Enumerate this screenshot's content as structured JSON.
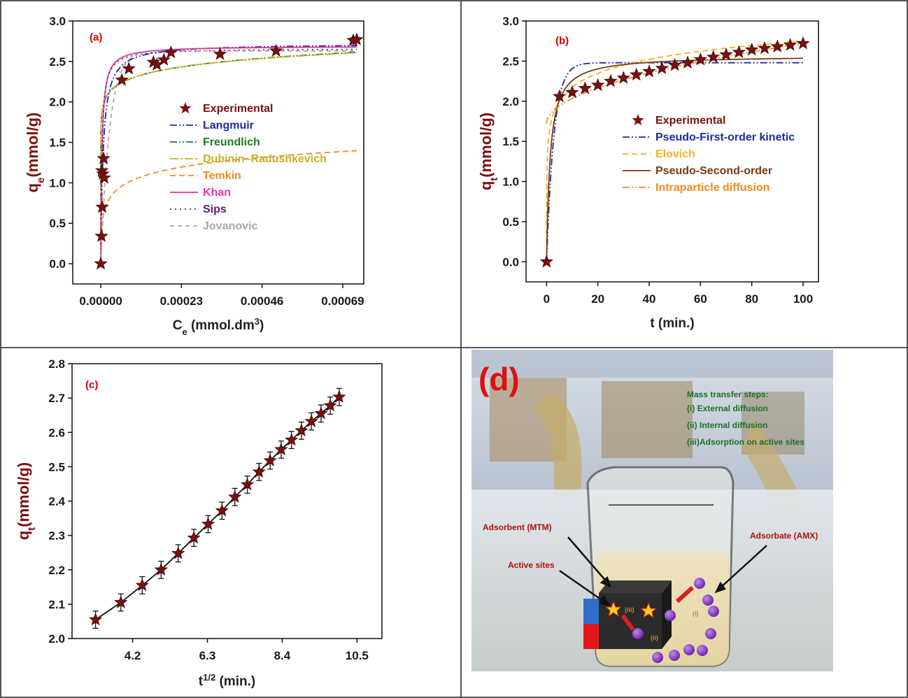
{
  "chart_data": [
    {
      "panel": "(a)",
      "type": "line",
      "xlabel": "C",
      "xlabel_sub": "e",
      "xlabel_unit": " (mmol.dm",
      "xlabel_sup": "3",
      "xlabel_close": ")",
      "ylabel": "q",
      "ylabel_sub": "e",
      "ylabel_unit": "(mmol/g)",
      "xlim": [
        -8e-05,
        0.00075
      ],
      "ylim": [
        -0.25,
        3.0
      ],
      "xticks": [
        "0.00000",
        "0.00023",
        "0.00046",
        "0.00069"
      ],
      "xtick_values": [
        0,
        0.00023,
        0.00046,
        0.00069
      ],
      "yticks": [
        "0.0",
        "0.5",
        "1.0",
        "1.5",
        "2.0",
        "2.5",
        "3.0"
      ],
      "ytick_values": [
        0,
        0.5,
        1.0,
        1.5,
        2.0,
        2.5,
        3.0
      ],
      "experimental": {
        "name": "Experimental",
        "color": "#7b0f0f",
        "x": [
          0.0,
          2e-06,
          4e-06,
          3e-06,
          6e-06,
          8e-06,
          1e-05,
          6e-05,
          8e-05,
          0.00015,
          0.00016,
          0.00018,
          0.0002,
          0.00034,
          0.0005,
          0.00072,
          0.00073
        ],
        "y": [
          0.0,
          0.34,
          0.7,
          1.15,
          1.11,
          1.3,
          1.06,
          2.27,
          2.41,
          2.49,
          2.46,
          2.52,
          2.61,
          2.59,
          2.63,
          2.76,
          2.77
        ]
      },
      "series": [
        {
          "name": "Langmuir",
          "color": "#1f2aa8",
          "dash": "10,3,2,3,2,3",
          "model": "langmuir",
          "p": [
            2.72,
            150000
          ]
        },
        {
          "name": "Freundlich",
          "color": "#1f7a1f",
          "dash": "10,3,2,3,2,3",
          "model": "freundlich",
          "p": [
            4.09,
            0.062
          ]
        },
        {
          "name": "Dubinin–Radushkevich",
          "color": "#c8b02a",
          "dash": "12,3,3,3",
          "model": "freundlich",
          "p": [
            4.02,
            0.06
          ]
        },
        {
          "name": "Temkin",
          "color": "#f08a24",
          "dash": "8,5",
          "model": "temkin",
          "p": [
            0.175,
            4000000
          ]
        },
        {
          "name": "Khan",
          "color": "#e0389a",
          "dash": "",
          "model": "langmuir",
          "p": [
            2.69,
            300000
          ]
        },
        {
          "name": "Sips",
          "color": "#5a1a7a",
          "dash": "2,5",
          "model": "langmuir",
          "p": [
            2.66,
            320000
          ]
        },
        {
          "name": "Jovanovic",
          "color": "#a8a8a8",
          "dash": "6,5",
          "model": "jovanovic",
          "p": [
            2.63,
            40000
          ]
        }
      ]
    },
    {
      "panel": "(b)",
      "type": "line",
      "xlabel": "t (min.)",
      "ylabel": "q",
      "ylabel_sub": "t",
      "ylabel_unit": "(mmol/g)",
      "xlim": [
        -8,
        106
      ],
      "ylim": [
        -0.25,
        3.0
      ],
      "xticks": [
        "0",
        "20",
        "40",
        "60",
        "80",
        "100"
      ],
      "xtick_values": [
        0,
        20,
        40,
        60,
        80,
        100
      ],
      "yticks": [
        "0.0",
        "0.5",
        "1.0",
        "1.5",
        "2.0",
        "2.5",
        "3.0"
      ],
      "ytick_values": [
        0,
        0.5,
        1.0,
        1.5,
        2.0,
        2.5,
        3.0
      ],
      "experimental": {
        "name": "Experimental",
        "color": "#7b0f0f",
        "x": [
          0,
          5,
          10,
          15,
          20,
          25,
          30,
          35,
          40,
          45,
          50,
          55,
          60,
          65,
          70,
          75,
          80,
          85,
          90,
          95,
          100
        ],
        "y": [
          0.0,
          2.06,
          2.11,
          2.16,
          2.2,
          2.25,
          2.29,
          2.33,
          2.37,
          2.41,
          2.45,
          2.48,
          2.52,
          2.55,
          2.58,
          2.61,
          2.64,
          2.66,
          2.68,
          2.7,
          2.72
        ]
      },
      "series": [
        {
          "name": "Pseudo-First-order kinetic",
          "color": "#1f2aa8",
          "dash": "10,3,2,3,2,3",
          "model": "pfo",
          "p": [
            2.48,
            0.35
          ]
        },
        {
          "name": "Elovich",
          "color": "#f2b41e",
          "dash": "8,5",
          "model": "elovich",
          "p": [
            0.25,
            600
          ]
        },
        {
          "name": "Pseudo-Second-order",
          "color": "#7a3a14",
          "dash": "",
          "model": "pso",
          "p": [
            2.57,
            0.28
          ]
        },
        {
          "name": "Intraparticle diffusion",
          "color": "#f08a24",
          "dash": "10,3,2,3,2,3",
          "model": "ipd",
          "p": [
            1.72,
            0.1
          ]
        }
      ]
    },
    {
      "panel": "(c)",
      "type": "scatter",
      "xlabel": "t",
      "xlabel_sup": "1/2",
      "xlabel_unit": " (min.)",
      "ylabel": "q",
      "ylabel_sub": "t",
      "ylabel_unit": "(mmol/g)",
      "xlim": [
        2.5,
        11.2
      ],
      "ylim": [
        2.0,
        2.8
      ],
      "xticks": [
        "4.2",
        "6.3",
        "8.4",
        "10.5"
      ],
      "xtick_values": [
        4.2,
        6.3,
        8.4,
        10.5
      ],
      "yticks": [
        "2.0",
        "2.1",
        "2.2",
        "2.3",
        "2.4",
        "2.5",
        "2.6",
        "2.7",
        "2.8"
      ],
      "ytick_values": [
        2.0,
        2.1,
        2.2,
        2.3,
        2.4,
        2.5,
        2.6,
        2.7,
        2.8
      ],
      "experimental": {
        "name": "Experimental",
        "color": "#7b0f0f",
        "x": [
          3.16,
          3.87,
          4.47,
          5.0,
          5.48,
          5.92,
          6.32,
          6.71,
          7.07,
          7.42,
          7.75,
          8.06,
          8.37,
          8.66,
          8.94,
          9.22,
          9.49,
          9.75,
          10.0
        ],
        "y": [
          2.055,
          2.105,
          2.155,
          2.2,
          2.248,
          2.293,
          2.333,
          2.372,
          2.412,
          2.448,
          2.485,
          2.518,
          2.55,
          2.578,
          2.605,
          2.632,
          2.655,
          2.678,
          2.703
        ],
        "error": 0.025
      }
    }
  ],
  "photo": {
    "panel": "(d)",
    "steps_title": "Mass transfer steps:",
    "steps": [
      "(i)  External diffusion",
      "(ii) Internal diffusion",
      "(iii)Adsorption on active sites"
    ],
    "adsorbent": "Adsorbent (MTM)",
    "adsorbate": "Adsorbate (AMX)",
    "active_sites": "Active sites",
    "step_marks": [
      "(i)",
      "(iii)",
      "(ii)"
    ]
  }
}
